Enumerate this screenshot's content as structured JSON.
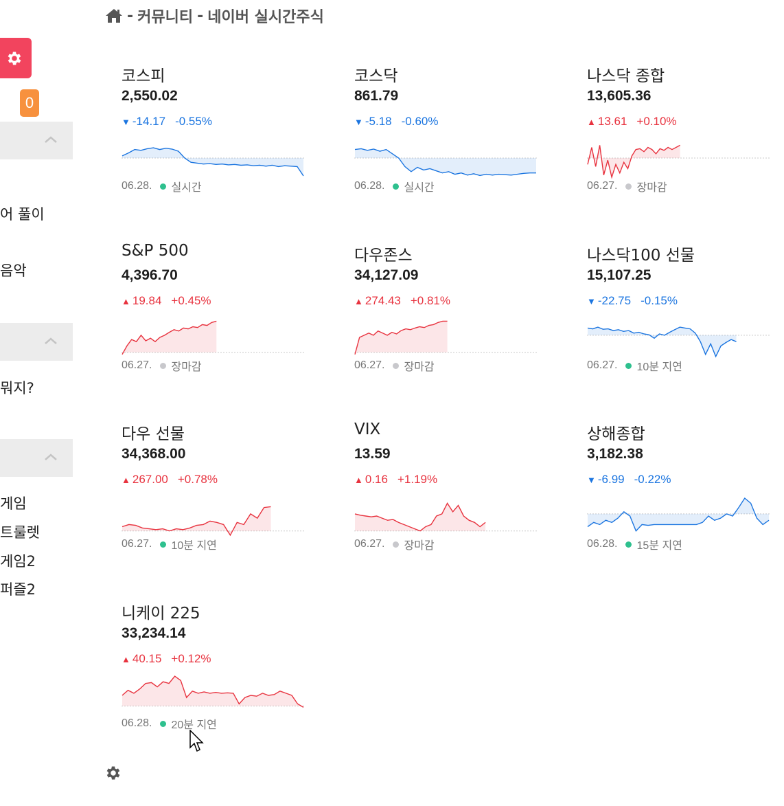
{
  "header": {
    "breadcrumb_sep1": "-",
    "community": "커뮤니티",
    "breadcrumb_sep2": "-",
    "page": "네이버 실시간주식"
  },
  "sidebar": {
    "badge_count": "0",
    "items": [
      {
        "label": "어 풀이"
      },
      {
        "label": "음악"
      },
      {
        "label": " 뭐지?"
      },
      {
        "label": " 게임"
      },
      {
        "label": "트룰렛"
      },
      {
        "label": "게임2"
      },
      {
        "label": "퍼즐2"
      }
    ]
  },
  "colors": {
    "up": "#e8333f",
    "down": "#1b75e0",
    "accent": "#f2445e",
    "badge": "#f7913e"
  },
  "cards": [
    {
      "name": "코스피",
      "price": "2,550.02",
      "dir": "down",
      "arrow": "▼",
      "change": "-14.17",
      "pct": "-0.55%",
      "date": "06.28.",
      "status": "실시간",
      "status_type": "live"
    },
    {
      "name": "코스닥",
      "price": "861.79",
      "dir": "down",
      "arrow": "▼",
      "change": "-5.18",
      "pct": "-0.60%",
      "date": "06.28.",
      "status": "실시간",
      "status_type": "live"
    },
    {
      "name": "나스닥 종합",
      "price": "13,605.36",
      "dir": "up",
      "arrow": "▲",
      "change": "13.61",
      "pct": "+0.10%",
      "date": "06.27.",
      "status": "장마감",
      "status_type": "closed"
    },
    {
      "name": "S&P 500",
      "price": "4,396.70",
      "dir": "up",
      "arrow": "▲",
      "change": "19.84",
      "pct": "+0.45%",
      "date": "06.27.",
      "status": "장마감",
      "status_type": "closed"
    },
    {
      "name": "다우존스",
      "price": "34,127.09",
      "dir": "up",
      "arrow": "▲",
      "change": "274.43",
      "pct": "+0.81%",
      "date": "06.27.",
      "status": "장마감",
      "status_type": "closed"
    },
    {
      "name": "나스닥100 선물",
      "price": "15,107.25",
      "dir": "down",
      "arrow": "▼",
      "change": "-22.75",
      "pct": "-0.15%",
      "date": "06.27.",
      "status": "10분 지연",
      "status_type": "live"
    },
    {
      "name": "다우 선물",
      "price": "34,368.00",
      "dir": "up",
      "arrow": "▲",
      "change": "267.00",
      "pct": "+0.78%",
      "date": "06.27.",
      "status": "10분 지연",
      "status_type": "live"
    },
    {
      "name": "VIX",
      "price": "13.59",
      "dir": "up",
      "arrow": "▲",
      "change": "0.16",
      "pct": "+1.19%",
      "date": "06.27.",
      "status": "장마감",
      "status_type": "closed"
    },
    {
      "name": "상해종합",
      "price": "3,182.38",
      "dir": "down",
      "arrow": "▼",
      "change": "-6.99",
      "pct": "-0.22%",
      "date": "06.28.",
      "status": "15분 지연",
      "status_type": "live"
    },
    {
      "name": "니케이 225",
      "price": "33,234.14",
      "dir": "up",
      "arrow": "▲",
      "change": "40.15",
      "pct": "+0.12%",
      "date": "06.28.",
      "status": "20분 지연",
      "status_type": "live"
    }
  ],
  "sparklines": [
    {
      "baseline": 0.5,
      "coverage": 1.0,
      "points": [
        0.55,
        0.62,
        0.7,
        0.68,
        0.72,
        0.74,
        0.7,
        0.73,
        0.71,
        0.66,
        0.5,
        0.4,
        0.38,
        0.36,
        0.37,
        0.35,
        0.36,
        0.34,
        0.35,
        0.33,
        0.34,
        0.32,
        0.33,
        0.31,
        0.33,
        0.3,
        0.32,
        0.31,
        0.3,
        0.08
      ]
    },
    {
      "baseline": 0.5,
      "coverage": 1.0,
      "points": [
        0.7,
        0.72,
        0.68,
        0.71,
        0.66,
        0.7,
        0.6,
        0.5,
        0.3,
        0.18,
        0.28,
        0.22,
        0.25,
        0.2,
        0.15,
        0.18,
        0.12,
        0.15,
        0.1,
        0.13,
        0.09,
        0.12,
        0.1,
        0.12,
        0.11,
        0.1,
        0.12,
        0.14,
        0.15,
        0.15
      ]
    },
    {
      "baseline": 0.5,
      "coverage": 0.51,
      "points": [
        0.35,
        0.75,
        0.3,
        0.8,
        0.1,
        0.45,
        0.05,
        0.35,
        0.15,
        0.4,
        0.25,
        0.55,
        0.7,
        0.72,
        0.65,
        0.75,
        0.7,
        0.6,
        0.72,
        0.68,
        0.75,
        0.7,
        0.75,
        0.8
      ]
    },
    {
      "baseline": 0.15,
      "coverage": 0.52,
      "points": [
        0.1,
        0.3,
        0.45,
        0.4,
        0.55,
        0.42,
        0.48,
        0.4,
        0.5,
        0.55,
        0.62,
        0.68,
        0.65,
        0.72,
        0.7,
        0.75,
        0.73,
        0.8,
        0.78,
        0.85,
        0.88
      ]
    },
    {
      "baseline": 0.15,
      "coverage": 0.51,
      "points": [
        0.1,
        0.5,
        0.55,
        0.6,
        0.55,
        0.65,
        0.6,
        0.55,
        0.62,
        0.58,
        0.66,
        0.7,
        0.68,
        0.72,
        0.75,
        0.73,
        0.78,
        0.8,
        0.85,
        0.88,
        0.88
      ]
    },
    {
      "baseline": 0.55,
      "coverage": 0.82,
      "points": [
        0.72,
        0.7,
        0.74,
        0.69,
        0.7,
        0.66,
        0.68,
        0.64,
        0.66,
        0.6,
        0.62,
        0.58,
        0.56,
        0.48,
        0.58,
        0.55,
        0.62,
        0.68,
        0.74,
        0.72,
        0.7,
        0.6,
        0.4,
        0.1,
        0.35,
        0.05,
        0.3,
        0.38,
        0.45,
        0.4
      ]
    },
    {
      "baseline": 0.15,
      "coverage": 0.82,
      "points": [
        0.25,
        0.3,
        0.28,
        0.22,
        0.2,
        0.18,
        0.2,
        0.15,
        0.2,
        0.18,
        0.22,
        0.28,
        0.3,
        0.38,
        0.35,
        0.3,
        0.05,
        0.35,
        0.3,
        0.55,
        0.45,
        0.7,
        0.72
      ]
    },
    {
      "baseline": 0.15,
      "coverage": 0.72,
      "points": [
        0.55,
        0.52,
        0.5,
        0.48,
        0.5,
        0.45,
        0.4,
        0.42,
        0.35,
        0.3,
        0.25,
        0.2,
        0.15,
        0.25,
        0.3,
        0.5,
        0.55,
        0.8,
        0.6,
        0.75,
        0.5,
        0.4,
        0.35,
        0.25,
        0.35
      ]
    },
    {
      "baseline": 0.55,
      "coverage": 1.0,
      "points": [
        0.25,
        0.35,
        0.3,
        0.4,
        0.35,
        0.45,
        0.6,
        0.5,
        0.15,
        0.3,
        0.28,
        0.3,
        0.3,
        0.3,
        0.3,
        0.3,
        0.3,
        0.3,
        0.3,
        0.35,
        0.5,
        0.4,
        0.45,
        0.55,
        0.5,
        0.7,
        0.92,
        0.8,
        0.45,
        0.3,
        0.4
      ]
    },
    {
      "baseline": 0.25,
      "coverage": 1.0,
      "points": [
        0.5,
        0.62,
        0.55,
        0.65,
        0.78,
        0.8,
        0.7,
        0.82,
        0.78,
        0.95,
        0.85,
        0.45,
        0.6,
        0.55,
        0.58,
        0.55,
        0.57,
        0.55,
        0.56,
        0.55,
        0.3,
        0.45,
        0.5,
        0.48,
        0.55,
        0.5,
        0.52,
        0.6,
        0.55,
        0.5,
        0.3,
        0.22
      ]
    }
  ]
}
